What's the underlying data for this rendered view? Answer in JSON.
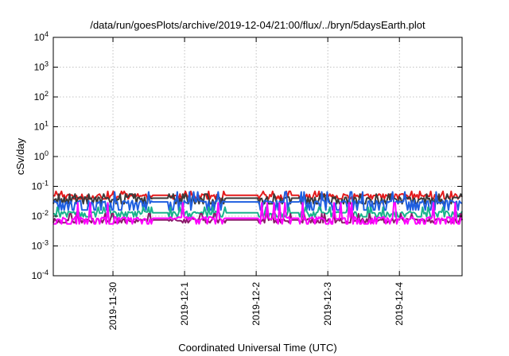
{
  "chart_data": {
    "type": "line",
    "title": "/data/run/goesPlots/archive/2019-12-04/21:00/flux/../bryn/5daysEarth.plot",
    "xlabel": "Coordinated Universal Time (UTC)",
    "ylabel": "cSv/day",
    "yscale": "log",
    "ylim": [
      0.0001,
      10000
    ],
    "xlim": [
      "2019-11-29T04:00",
      "2019-12-04T21:00"
    ],
    "grid": true,
    "x_ticks": [
      {
        "label": "2019-11-30",
        "value": "2019-11-30T00:00"
      },
      {
        "label": "2019-12-1",
        "value": "2019-12-01T00:00"
      },
      {
        "label": "2019-12-2",
        "value": "2019-12-02T00:00"
      },
      {
        "label": "2019-12-3",
        "value": "2019-12-03T00:00"
      },
      {
        "label": "2019-12-4",
        "value": "2019-12-04T00:00"
      }
    ],
    "y_ticks": [
      {
        "base": "10",
        "exp": "-4",
        "value": 0.0001
      },
      {
        "base": "10",
        "exp": "-3",
        "value": 0.001
      },
      {
        "base": "10",
        "exp": "-2",
        "value": 0.01
      },
      {
        "base": "10",
        "exp": "-1",
        "value": 0.1
      },
      {
        "base": "10",
        "exp": "0",
        "value": 1
      },
      {
        "base": "10",
        "exp": "1",
        "value": 10
      },
      {
        "base": "10",
        "exp": "2",
        "value": 100
      },
      {
        "base": "10",
        "exp": "3",
        "value": 1000
      },
      {
        "base": "10",
        "exp": "4",
        "value": 10000
      }
    ],
    "series": [
      {
        "color": "#e41a1c",
        "base": 0.05,
        "dip": 0.038,
        "peak": 0.068
      },
      {
        "color": "#3a3a3a",
        "base": 0.04,
        "dip": 0.026,
        "peak": 0.055
      },
      {
        "color": "#1f5fe0",
        "base": 0.03,
        "dip": 0.016,
        "peak": 0.065
      },
      {
        "color": "#1ab38c",
        "base": 0.013,
        "dip": 0.0095,
        "peak": 0.02
      },
      {
        "color": "#8b1a6b",
        "base": 0.0075,
        "dip": 0.006,
        "peak": 0.012
      },
      {
        "color": "#ff00ff",
        "base": 0.0085,
        "dip": 0.0055,
        "peak": 0.028
      }
    ]
  }
}
